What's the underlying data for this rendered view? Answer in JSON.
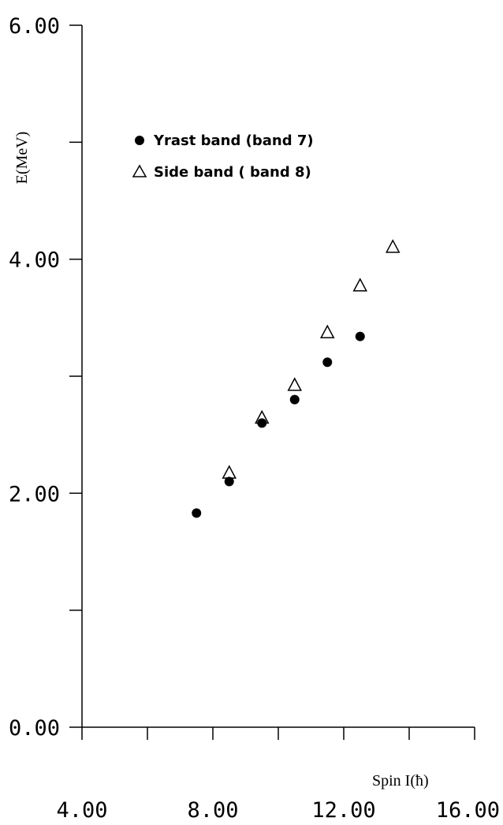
{
  "chart_data": {
    "type": "scatter",
    "xlabel": "Spin I(ħ)",
    "ylabel": "E(MeV)",
    "xlim": [
      4.0,
      16.0
    ],
    "ylim": [
      0.0,
      6.0
    ],
    "x_ticks_major": [
      4.0,
      8.0,
      12.0,
      16.0
    ],
    "x_ticks_minor": [
      6.0,
      10.0,
      14.0
    ],
    "y_ticks_major": [
      0.0,
      2.0,
      4.0,
      6.0
    ],
    "y_ticks_minor": [
      1.0,
      3.0,
      5.0
    ],
    "x_tick_labels": [
      "4.00",
      "8.00",
      "12.00",
      "16.00"
    ],
    "y_tick_labels": [
      "0.00",
      "2.00",
      "4.00",
      "6.00"
    ],
    "grid": false,
    "legend_position": "top-left",
    "series": [
      {
        "name": "Yrast band (band 7)",
        "marker": "filled-circle",
        "color": "#000000",
        "points": [
          {
            "x": 7.5,
            "y": 1.83
          },
          {
            "x": 8.5,
            "y": 2.1
          },
          {
            "x": 9.5,
            "y": 2.6
          },
          {
            "x": 10.5,
            "y": 2.8
          },
          {
            "x": 11.5,
            "y": 3.12
          },
          {
            "x": 12.5,
            "y": 3.34
          }
        ]
      },
      {
        "name": "Side band ( band 8)",
        "marker": "open-triangle",
        "color": "#000000",
        "points": [
          {
            "x": 8.5,
            "y": 2.17
          },
          {
            "x": 9.5,
            "y": 2.64
          },
          {
            "x": 10.5,
            "y": 2.92
          },
          {
            "x": 11.5,
            "y": 3.37
          },
          {
            "x": 12.5,
            "y": 3.77
          },
          {
            "x": 13.5,
            "y": 4.1
          }
        ]
      }
    ]
  }
}
